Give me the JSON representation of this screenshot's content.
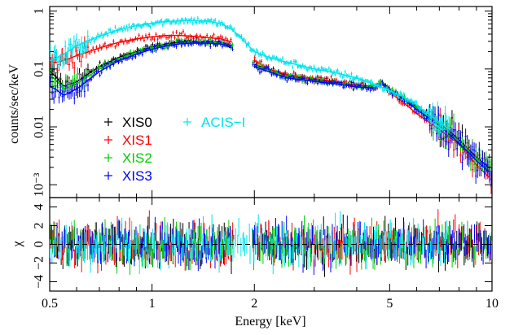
{
  "chart_data": [
    {
      "type": "scatter",
      "panel": "spectrum",
      "xlabel": "Energy [keV]",
      "ylabel": "counts/sec/keV",
      "x_scale": "log",
      "y_scale": "log",
      "xlim": [
        0.5,
        10
      ],
      "ylim": [
        0.0006,
        1.2
      ],
      "y_tick_labels": [
        "10⁻³",
        "0.01",
        "0.1",
        "1"
      ],
      "x_tick_labels": [
        "0.5",
        "1",
        "2",
        "5",
        "10"
      ],
      "legend": {
        "placement": "lower-left"
      },
      "series": [
        {
          "name": "XIS0",
          "color": "#000000",
          "x": [
            0.5,
            0.52,
            0.55,
            0.6,
            0.7,
            0.8,
            0.9,
            1.0,
            1.1,
            1.2,
            1.3,
            1.45,
            1.6,
            1.72,
            2.0,
            2.2,
            2.5,
            3.0,
            3.5,
            4.0,
            4.5,
            4.75,
            5.0,
            5.5,
            6.0,
            7.0,
            8.0,
            9.0,
            10.0
          ],
          "values": [
            0.09,
            0.075,
            0.05,
            0.06,
            0.11,
            0.16,
            0.2,
            0.24,
            0.27,
            0.29,
            0.3,
            0.3,
            0.29,
            0.25,
            0.12,
            0.1,
            0.075,
            0.065,
            0.058,
            0.052,
            0.05,
            0.06,
            0.045,
            0.032,
            0.022,
            0.012,
            0.006,
            0.003,
            0.0018
          ]
        },
        {
          "name": "XIS1",
          "color": "#ff0000",
          "x": [
            0.5,
            0.52,
            0.55,
            0.6,
            0.7,
            0.8,
            0.9,
            1.0,
            1.1,
            1.2,
            1.3,
            1.45,
            1.6,
            1.72,
            2.0,
            2.2,
            2.5,
            3.0,
            3.5,
            4.0,
            4.5,
            4.75,
            5.0,
            5.5,
            6.0,
            7.0,
            8.0,
            9.0,
            10.0
          ],
          "values": [
            0.13,
            0.13,
            0.14,
            0.17,
            0.23,
            0.29,
            0.33,
            0.36,
            0.38,
            0.38,
            0.37,
            0.35,
            0.33,
            0.29,
            0.14,
            0.1,
            0.08,
            0.068,
            0.06,
            0.052,
            0.048,
            0.058,
            0.04,
            0.026,
            0.017,
            0.009,
            0.005,
            0.0022,
            0.0012
          ]
        },
        {
          "name": "XIS2",
          "color": "#00cc00",
          "x": [
            0.5,
            0.52,
            0.55,
            0.6,
            0.7,
            0.8,
            0.9,
            1.0,
            1.1,
            1.2,
            1.3,
            1.45,
            1.6,
            1.72,
            2.0,
            2.2,
            2.5,
            3.0,
            3.5,
            4.0,
            4.5,
            4.75,
            5.0,
            5.5,
            6.0,
            7.0,
            8.0,
            9.0,
            10.0
          ],
          "values": [
            0.08,
            0.065,
            0.045,
            0.055,
            0.1,
            0.15,
            0.19,
            0.23,
            0.26,
            0.28,
            0.29,
            0.29,
            0.28,
            0.24,
            0.115,
            0.095,
            0.072,
            0.063,
            0.056,
            0.05,
            0.048,
            0.058,
            0.043,
            0.031,
            0.021,
            0.011,
            0.0055,
            0.0028,
            0.0016
          ]
        },
        {
          "name": "XIS3",
          "color": "#0000ff",
          "x": [
            0.5,
            0.52,
            0.55,
            0.6,
            0.7,
            0.8,
            0.9,
            1.0,
            1.1,
            1.2,
            1.3,
            1.45,
            1.6,
            1.72,
            2.0,
            2.2,
            2.5,
            3.0,
            3.5,
            4.0,
            4.5,
            4.75,
            5.0,
            5.5,
            6.0,
            7.0,
            8.0,
            9.0,
            10.0
          ],
          "values": [
            0.05,
            0.045,
            0.035,
            0.045,
            0.09,
            0.14,
            0.18,
            0.22,
            0.25,
            0.27,
            0.28,
            0.28,
            0.27,
            0.23,
            0.11,
            0.09,
            0.07,
            0.061,
            0.055,
            0.049,
            0.047,
            0.056,
            0.042,
            0.03,
            0.02,
            0.0105,
            0.0052,
            0.0026,
            0.0015
          ]
        },
        {
          "name": "ACIS−I",
          "color": "#00e5ee",
          "x": [
            0.5,
            0.52,
            0.55,
            0.6,
            0.7,
            0.8,
            0.9,
            1.0,
            1.1,
            1.2,
            1.3,
            1.4,
            1.5,
            1.6,
            1.7,
            1.8,
            1.9,
            2.0,
            2.2,
            2.5,
            3.0,
            3.5,
            4.0,
            4.5,
            4.75,
            5.0,
            5.5,
            6.0,
            7.0,
            7.5
          ],
          "values": [
            0.14,
            0.15,
            0.18,
            0.25,
            0.37,
            0.48,
            0.56,
            0.62,
            0.66,
            0.68,
            0.69,
            0.68,
            0.65,
            0.6,
            0.5,
            0.38,
            0.27,
            0.2,
            0.16,
            0.13,
            0.1,
            0.085,
            0.07,
            0.055,
            0.048,
            0.042,
            0.033,
            0.024,
            0.012,
            0.009
          ]
        }
      ]
    },
    {
      "type": "scatter",
      "panel": "residuals",
      "xlabel": "Energy [keV]",
      "ylabel": "χ",
      "x_scale": "log",
      "xlim": [
        0.5,
        10
      ],
      "ylim": [
        -5,
        5
      ],
      "y_tick_labels": [
        "−4",
        "−2",
        "0",
        "2",
        "4"
      ],
      "reference_line": 0,
      "series_colors": [
        "#000000",
        "#ff0000",
        "#00cc00",
        "#0000ff",
        "#00e5ee"
      ],
      "residual_spread": 1.3
    }
  ]
}
